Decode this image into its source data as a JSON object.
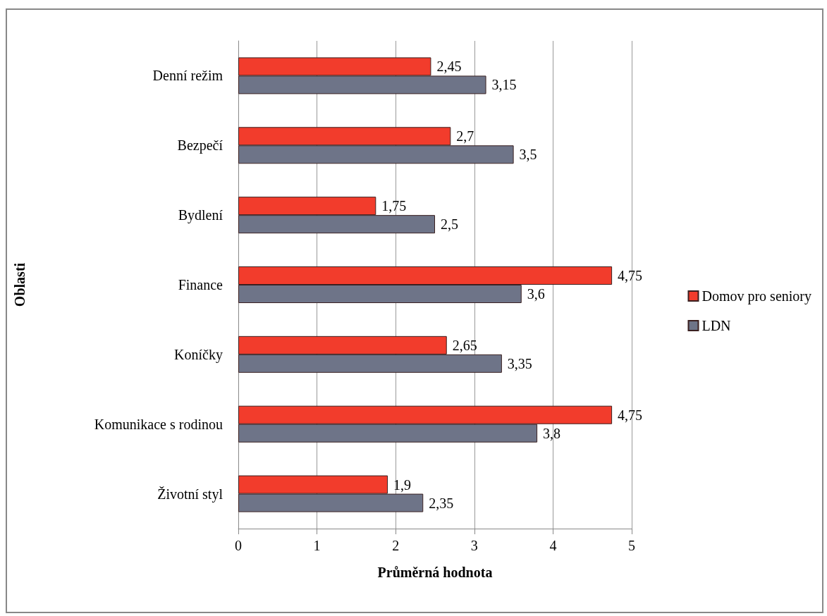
{
  "chart_data": {
    "type": "bar",
    "orientation": "horizontal",
    "xlabel": "Průměrná hodnota",
    "ylabel": "Oblasti",
    "categories": [
      "Denní režim",
      "Bezpečí",
      "Bydlení",
      "Finance",
      "Koníčky",
      "Komunikace s rodinou",
      "Životní styl"
    ],
    "series": [
      {
        "name": "Domov pro seniory",
        "color": "#f23c2c",
        "values": [
          2.45,
          2.7,
          1.75,
          4.75,
          2.65,
          4.75,
          1.9
        ],
        "value_labels": [
          "2,45",
          "2,7",
          "1,75",
          "4,75",
          "2,65",
          "4,75",
          "1,9"
        ]
      },
      {
        "name": "LDN",
        "color": "#6e7488",
        "values": [
          3.15,
          3.5,
          2.5,
          3.6,
          3.35,
          3.8,
          2.35
        ],
        "value_labels": [
          "3,15",
          "3,5",
          "2,5",
          "3,6",
          "3,35",
          "3,8",
          "2,35"
        ]
      }
    ],
    "xlim": [
      0,
      5
    ],
    "xticks": [
      0,
      1,
      2,
      3,
      4,
      5
    ],
    "grid": "x",
    "legend": "right"
  }
}
